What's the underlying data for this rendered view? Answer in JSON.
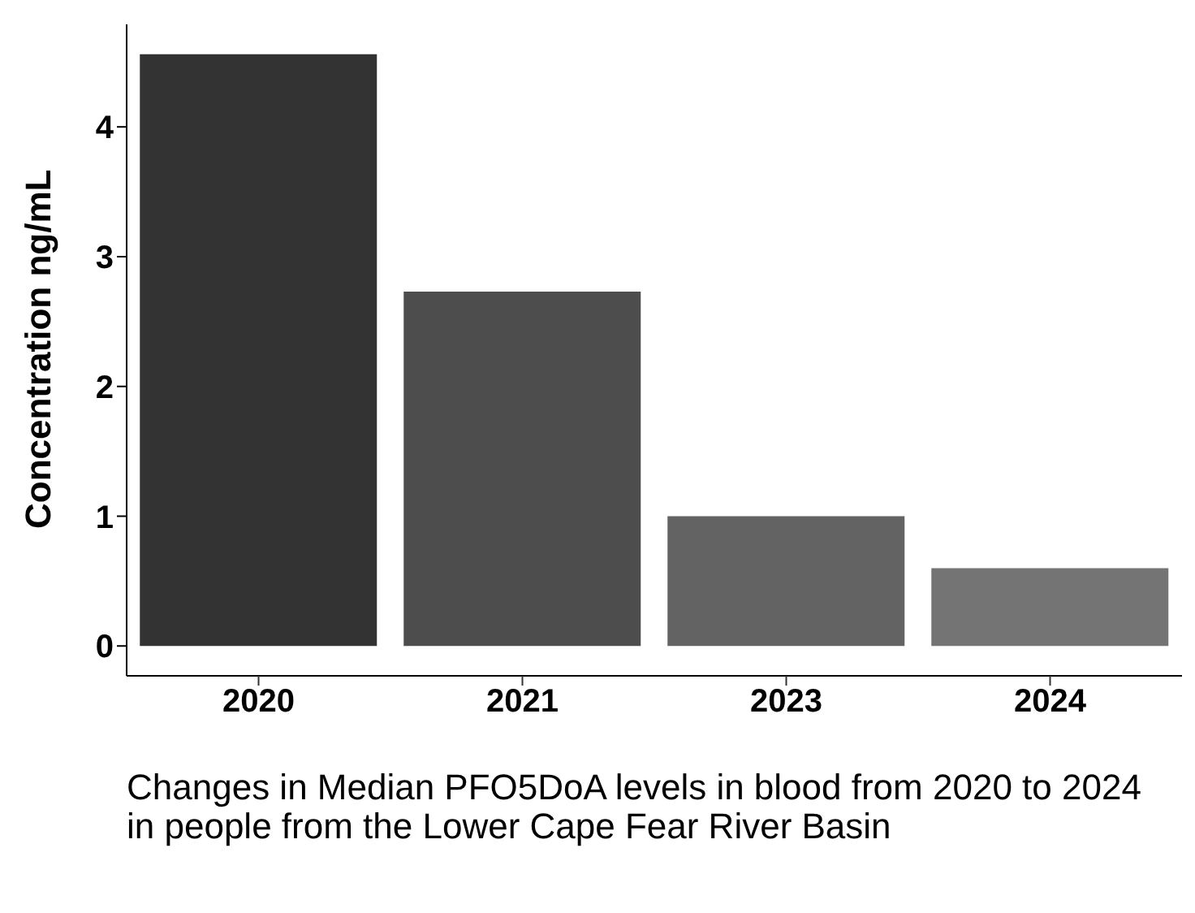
{
  "chart_data": {
    "type": "bar",
    "ylabel": "Concentration ng/mL",
    "categories": [
      "2020",
      "2021",
      "2023",
      "2024"
    ],
    "values": [
      4.56,
      2.73,
      1.0,
      0.6
    ],
    "colors": [
      "#333333",
      "#4d4d4d",
      "#636363",
      "#747474"
    ],
    "ylim": [
      -0.23,
      4.79
    ],
    "yticks": [
      0,
      1,
      2,
      3,
      4
    ],
    "grid": false,
    "legend": false,
    "annotations": [
      "Changes in Median PFO5DoA levels in blood from 2020 to 2024 in people from the Lower Cape Fear River Basin"
    ]
  }
}
